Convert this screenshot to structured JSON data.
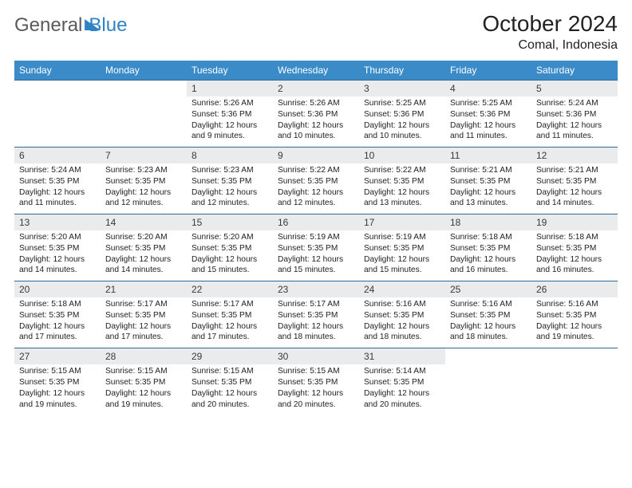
{
  "logo": {
    "word1": "General",
    "word2": "Blue"
  },
  "title": "October 2024",
  "location": "Comal, Indonesia",
  "colors": {
    "header_bg": "#3b8bc9",
    "header_text": "#ffffff",
    "daynum_bg": "#e9ebec",
    "rule": "#2f6a96",
    "logo_gray": "#5a5a5a",
    "logo_blue": "#2f83c5",
    "body_text": "#222222",
    "page_bg": "#ffffff"
  },
  "font": {
    "family": "Arial",
    "header_pt": 12,
    "daynum_pt": 12,
    "body_pt": 10,
    "title_pt": 28,
    "location_pt": 16
  },
  "day_headers": [
    "Sunday",
    "Monday",
    "Tuesday",
    "Wednesday",
    "Thursday",
    "Friday",
    "Saturday"
  ],
  "weeks": [
    {
      "nums": [
        "",
        "",
        "1",
        "2",
        "3",
        "4",
        "5"
      ],
      "cells": [
        null,
        null,
        {
          "sunrise": "5:26 AM",
          "sunset": "5:36 PM",
          "daylight": "12 hours and 9 minutes."
        },
        {
          "sunrise": "5:26 AM",
          "sunset": "5:36 PM",
          "daylight": "12 hours and 10 minutes."
        },
        {
          "sunrise": "5:25 AM",
          "sunset": "5:36 PM",
          "daylight": "12 hours and 10 minutes."
        },
        {
          "sunrise": "5:25 AM",
          "sunset": "5:36 PM",
          "daylight": "12 hours and 11 minutes."
        },
        {
          "sunrise": "5:24 AM",
          "sunset": "5:36 PM",
          "daylight": "12 hours and 11 minutes."
        }
      ]
    },
    {
      "nums": [
        "6",
        "7",
        "8",
        "9",
        "10",
        "11",
        "12"
      ],
      "cells": [
        {
          "sunrise": "5:24 AM",
          "sunset": "5:35 PM",
          "daylight": "12 hours and 11 minutes."
        },
        {
          "sunrise": "5:23 AM",
          "sunset": "5:35 PM",
          "daylight": "12 hours and 12 minutes."
        },
        {
          "sunrise": "5:23 AM",
          "sunset": "5:35 PM",
          "daylight": "12 hours and 12 minutes."
        },
        {
          "sunrise": "5:22 AM",
          "sunset": "5:35 PM",
          "daylight": "12 hours and 12 minutes."
        },
        {
          "sunrise": "5:22 AM",
          "sunset": "5:35 PM",
          "daylight": "12 hours and 13 minutes."
        },
        {
          "sunrise": "5:21 AM",
          "sunset": "5:35 PM",
          "daylight": "12 hours and 13 minutes."
        },
        {
          "sunrise": "5:21 AM",
          "sunset": "5:35 PM",
          "daylight": "12 hours and 14 minutes."
        }
      ]
    },
    {
      "nums": [
        "13",
        "14",
        "15",
        "16",
        "17",
        "18",
        "19"
      ],
      "cells": [
        {
          "sunrise": "5:20 AM",
          "sunset": "5:35 PM",
          "daylight": "12 hours and 14 minutes."
        },
        {
          "sunrise": "5:20 AM",
          "sunset": "5:35 PM",
          "daylight": "12 hours and 14 minutes."
        },
        {
          "sunrise": "5:20 AM",
          "sunset": "5:35 PM",
          "daylight": "12 hours and 15 minutes."
        },
        {
          "sunrise": "5:19 AM",
          "sunset": "5:35 PM",
          "daylight": "12 hours and 15 minutes."
        },
        {
          "sunrise": "5:19 AM",
          "sunset": "5:35 PM",
          "daylight": "12 hours and 15 minutes."
        },
        {
          "sunrise": "5:18 AM",
          "sunset": "5:35 PM",
          "daylight": "12 hours and 16 minutes."
        },
        {
          "sunrise": "5:18 AM",
          "sunset": "5:35 PM",
          "daylight": "12 hours and 16 minutes."
        }
      ]
    },
    {
      "nums": [
        "20",
        "21",
        "22",
        "23",
        "24",
        "25",
        "26"
      ],
      "cells": [
        {
          "sunrise": "5:18 AM",
          "sunset": "5:35 PM",
          "daylight": "12 hours and 17 minutes."
        },
        {
          "sunrise": "5:17 AM",
          "sunset": "5:35 PM",
          "daylight": "12 hours and 17 minutes."
        },
        {
          "sunrise": "5:17 AM",
          "sunset": "5:35 PM",
          "daylight": "12 hours and 17 minutes."
        },
        {
          "sunrise": "5:17 AM",
          "sunset": "5:35 PM",
          "daylight": "12 hours and 18 minutes."
        },
        {
          "sunrise": "5:16 AM",
          "sunset": "5:35 PM",
          "daylight": "12 hours and 18 minutes."
        },
        {
          "sunrise": "5:16 AM",
          "sunset": "5:35 PM",
          "daylight": "12 hours and 18 minutes."
        },
        {
          "sunrise": "5:16 AM",
          "sunset": "5:35 PM",
          "daylight": "12 hours and 19 minutes."
        }
      ]
    },
    {
      "nums": [
        "27",
        "28",
        "29",
        "30",
        "31",
        "",
        ""
      ],
      "cells": [
        {
          "sunrise": "5:15 AM",
          "sunset": "5:35 PM",
          "daylight": "12 hours and 19 minutes."
        },
        {
          "sunrise": "5:15 AM",
          "sunset": "5:35 PM",
          "daylight": "12 hours and 19 minutes."
        },
        {
          "sunrise": "5:15 AM",
          "sunset": "5:35 PM",
          "daylight": "12 hours and 20 minutes."
        },
        {
          "sunrise": "5:15 AM",
          "sunset": "5:35 PM",
          "daylight": "12 hours and 20 minutes."
        },
        {
          "sunrise": "5:14 AM",
          "sunset": "5:35 PM",
          "daylight": "12 hours and 20 minutes."
        },
        null,
        null
      ]
    }
  ],
  "labels": {
    "sunrise": "Sunrise:",
    "sunset": "Sunset:",
    "daylight": "Daylight:"
  }
}
